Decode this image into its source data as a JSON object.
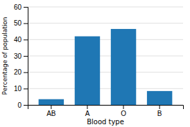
{
  "chart_data": {
    "type": "bar",
    "categories": [
      "AB",
      "A",
      "O",
      "B"
    ],
    "values": [
      3.5,
      42,
      46.5,
      8.5
    ],
    "xlabel": "Blood type",
    "ylabel": "Percentage of population",
    "ylim": [
      0,
      60
    ],
    "yticks": [
      0,
      10,
      20,
      30,
      40,
      50,
      60
    ],
    "grid": true
  }
}
